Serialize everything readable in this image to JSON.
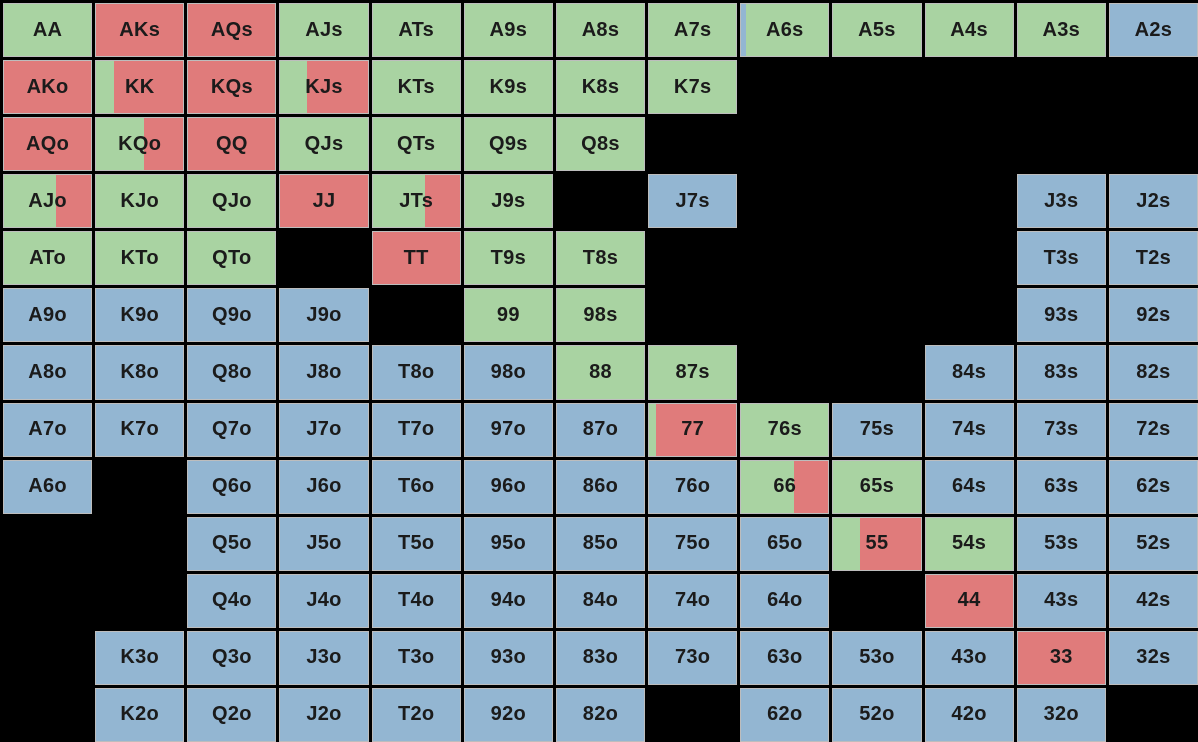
{
  "colors": {
    "raise": "#e07b7b",
    "call": "#a9d3a2",
    "fold": "#93b6d2",
    "empty": "#000000"
  },
  "ranks": [
    "A",
    "K",
    "Q",
    "J",
    "T",
    "9",
    "8",
    "7",
    "6",
    "5",
    "4",
    "3",
    "2"
  ],
  "grid": [
    [
      {
        "label": "AA",
        "mix": [
          [
            "call",
            1
          ]
        ]
      },
      {
        "label": "AKs",
        "mix": [
          [
            "raise",
            1
          ]
        ]
      },
      {
        "label": "AQs",
        "mix": [
          [
            "raise",
            1
          ]
        ]
      },
      {
        "label": "AJs",
        "mix": [
          [
            "call",
            1
          ]
        ]
      },
      {
        "label": "ATs",
        "mix": [
          [
            "call",
            1
          ]
        ]
      },
      {
        "label": "A9s",
        "mix": [
          [
            "call",
            1
          ]
        ]
      },
      {
        "label": "A8s",
        "mix": [
          [
            "call",
            1
          ]
        ]
      },
      {
        "label": "A7s",
        "mix": [
          [
            "call",
            1
          ]
        ]
      },
      {
        "label": "A6s",
        "mix": [
          [
            "fold",
            0.06
          ],
          [
            "call",
            0.94
          ]
        ]
      },
      {
        "label": "A5s",
        "mix": [
          [
            "call",
            1
          ]
        ]
      },
      {
        "label": "A4s",
        "mix": [
          [
            "call",
            1
          ]
        ]
      },
      {
        "label": "A3s",
        "mix": [
          [
            "call",
            1
          ]
        ]
      },
      {
        "label": "A2s",
        "mix": [
          [
            "fold",
            1
          ]
        ]
      }
    ],
    [
      {
        "label": "AKo",
        "mix": [
          [
            "raise",
            1
          ]
        ]
      },
      {
        "label": "KK",
        "mix": [
          [
            "call",
            0.2
          ],
          [
            "raise",
            0.8
          ]
        ]
      },
      {
        "label": "KQs",
        "mix": [
          [
            "raise",
            1
          ]
        ]
      },
      {
        "label": "KJs",
        "mix": [
          [
            "call",
            0.3
          ],
          [
            "raise",
            0.7
          ]
        ]
      },
      {
        "label": "KTs",
        "mix": [
          [
            "call",
            1
          ]
        ]
      },
      {
        "label": "K9s",
        "mix": [
          [
            "call",
            1
          ]
        ]
      },
      {
        "label": "K8s",
        "mix": [
          [
            "call",
            1
          ]
        ]
      },
      {
        "label": "K7s",
        "mix": [
          [
            "call",
            1
          ]
        ]
      },
      null,
      null,
      null,
      null,
      null
    ],
    [
      {
        "label": "AQo",
        "mix": [
          [
            "raise",
            1
          ]
        ]
      },
      {
        "label": "KQo",
        "mix": [
          [
            "call",
            0.55
          ],
          [
            "raise",
            0.45
          ]
        ]
      },
      {
        "label": "QQ",
        "mix": [
          [
            "raise",
            1
          ]
        ]
      },
      {
        "label": "QJs",
        "mix": [
          [
            "call",
            1
          ]
        ]
      },
      {
        "label": "QTs",
        "mix": [
          [
            "call",
            1
          ]
        ]
      },
      {
        "label": "Q9s",
        "mix": [
          [
            "call",
            1
          ]
        ]
      },
      {
        "label": "Q8s",
        "mix": [
          [
            "call",
            1
          ]
        ]
      },
      null,
      null,
      null,
      null,
      null,
      null
    ],
    [
      {
        "label": "AJo",
        "mix": [
          [
            "call",
            0.6
          ],
          [
            "raise",
            0.4
          ]
        ]
      },
      {
        "label": "KJo",
        "mix": [
          [
            "call",
            1
          ]
        ]
      },
      {
        "label": "QJo",
        "mix": [
          [
            "call",
            1
          ]
        ]
      },
      {
        "label": "JJ",
        "mix": [
          [
            "raise",
            1
          ]
        ]
      },
      {
        "label": "JTs",
        "mix": [
          [
            "call",
            0.6
          ],
          [
            "raise",
            0.4
          ]
        ]
      },
      {
        "label": "J9s",
        "mix": [
          [
            "call",
            1
          ]
        ]
      },
      null,
      {
        "label": "J7s",
        "mix": [
          [
            "fold",
            1
          ]
        ]
      },
      null,
      null,
      null,
      {
        "label": "J3s",
        "mix": [
          [
            "fold",
            1
          ]
        ]
      },
      {
        "label": "J2s",
        "mix": [
          [
            "fold",
            1
          ]
        ]
      }
    ],
    [
      {
        "label": "ATo",
        "mix": [
          [
            "call",
            1
          ]
        ]
      },
      {
        "label": "KTo",
        "mix": [
          [
            "call",
            1
          ]
        ]
      },
      {
        "label": "QTo",
        "mix": [
          [
            "call",
            1
          ]
        ]
      },
      null,
      {
        "label": "TT",
        "mix": [
          [
            "raise",
            1
          ]
        ]
      },
      {
        "label": "T9s",
        "mix": [
          [
            "call",
            1
          ]
        ]
      },
      {
        "label": "T8s",
        "mix": [
          [
            "call",
            1
          ]
        ]
      },
      null,
      null,
      null,
      null,
      {
        "label": "T3s",
        "mix": [
          [
            "fold",
            1
          ]
        ]
      },
      {
        "label": "T2s",
        "mix": [
          [
            "fold",
            1
          ]
        ]
      }
    ],
    [
      {
        "label": "A9o",
        "mix": [
          [
            "fold",
            1
          ]
        ]
      },
      {
        "label": "K9o",
        "mix": [
          [
            "fold",
            1
          ]
        ]
      },
      {
        "label": "Q9o",
        "mix": [
          [
            "fold",
            1
          ]
        ]
      },
      {
        "label": "J9o",
        "mix": [
          [
            "fold",
            1
          ]
        ]
      },
      null,
      {
        "label": "99",
        "mix": [
          [
            "call",
            1
          ]
        ]
      },
      {
        "label": "98s",
        "mix": [
          [
            "call",
            1
          ]
        ]
      },
      null,
      null,
      null,
      null,
      {
        "label": "93s",
        "mix": [
          [
            "fold",
            1
          ]
        ]
      },
      {
        "label": "92s",
        "mix": [
          [
            "fold",
            1
          ]
        ]
      }
    ],
    [
      {
        "label": "A8o",
        "mix": [
          [
            "fold",
            1
          ]
        ]
      },
      {
        "label": "K8o",
        "mix": [
          [
            "fold",
            1
          ]
        ]
      },
      {
        "label": "Q8o",
        "mix": [
          [
            "fold",
            1
          ]
        ]
      },
      {
        "label": "J8o",
        "mix": [
          [
            "fold",
            1
          ]
        ]
      },
      {
        "label": "T8o",
        "mix": [
          [
            "fold",
            1
          ]
        ]
      },
      {
        "label": "98o",
        "mix": [
          [
            "fold",
            1
          ]
        ]
      },
      {
        "label": "88",
        "mix": [
          [
            "call",
            1
          ]
        ]
      },
      {
        "label": "87s",
        "mix": [
          [
            "call",
            1
          ]
        ]
      },
      null,
      null,
      {
        "label": "84s",
        "mix": [
          [
            "fold",
            1
          ]
        ]
      },
      {
        "label": "83s",
        "mix": [
          [
            "fold",
            1
          ]
        ]
      },
      {
        "label": "82s",
        "mix": [
          [
            "fold",
            1
          ]
        ]
      }
    ],
    [
      {
        "label": "A7o",
        "mix": [
          [
            "fold",
            1
          ]
        ]
      },
      {
        "label": "K7o",
        "mix": [
          [
            "fold",
            1
          ]
        ]
      },
      {
        "label": "Q7o",
        "mix": [
          [
            "fold",
            1
          ]
        ]
      },
      {
        "label": "J7o",
        "mix": [
          [
            "fold",
            1
          ]
        ]
      },
      {
        "label": "T7o",
        "mix": [
          [
            "fold",
            1
          ]
        ]
      },
      {
        "label": "97o",
        "mix": [
          [
            "fold",
            1
          ]
        ]
      },
      {
        "label": "87o",
        "mix": [
          [
            "fold",
            1
          ]
        ]
      },
      {
        "label": "77",
        "mix": [
          [
            "call",
            0.08
          ],
          [
            "raise",
            0.92
          ]
        ]
      },
      {
        "label": "76s",
        "mix": [
          [
            "call",
            1
          ]
        ]
      },
      {
        "label": "75s",
        "mix": [
          [
            "fold",
            1
          ]
        ]
      },
      {
        "label": "74s",
        "mix": [
          [
            "fold",
            1
          ]
        ]
      },
      {
        "label": "73s",
        "mix": [
          [
            "fold",
            1
          ]
        ]
      },
      {
        "label": "72s",
        "mix": [
          [
            "fold",
            1
          ]
        ]
      }
    ],
    [
      {
        "label": "A6o",
        "mix": [
          [
            "fold",
            1
          ]
        ]
      },
      null,
      {
        "label": "Q6o",
        "mix": [
          [
            "fold",
            1
          ]
        ]
      },
      {
        "label": "J6o",
        "mix": [
          [
            "fold",
            1
          ]
        ]
      },
      {
        "label": "T6o",
        "mix": [
          [
            "fold",
            1
          ]
        ]
      },
      {
        "label": "96o",
        "mix": [
          [
            "fold",
            1
          ]
        ]
      },
      {
        "label": "86o",
        "mix": [
          [
            "fold",
            1
          ]
        ]
      },
      {
        "label": "76o",
        "mix": [
          [
            "fold",
            1
          ]
        ]
      },
      {
        "label": "66",
        "mix": [
          [
            "call",
            0.6
          ],
          [
            "raise",
            0.4
          ]
        ]
      },
      {
        "label": "65s",
        "mix": [
          [
            "call",
            1
          ]
        ]
      },
      {
        "label": "64s",
        "mix": [
          [
            "fold",
            1
          ]
        ]
      },
      {
        "label": "63s",
        "mix": [
          [
            "fold",
            1
          ]
        ]
      },
      {
        "label": "62s",
        "mix": [
          [
            "fold",
            1
          ]
        ]
      }
    ],
    [
      null,
      null,
      {
        "label": "Q5o",
        "mix": [
          [
            "fold",
            1
          ]
        ]
      },
      {
        "label": "J5o",
        "mix": [
          [
            "fold",
            1
          ]
        ]
      },
      {
        "label": "T5o",
        "mix": [
          [
            "fold",
            1
          ]
        ]
      },
      {
        "label": "95o",
        "mix": [
          [
            "fold",
            1
          ]
        ]
      },
      {
        "label": "85o",
        "mix": [
          [
            "fold",
            1
          ]
        ]
      },
      {
        "label": "75o",
        "mix": [
          [
            "fold",
            1
          ]
        ]
      },
      {
        "label": "65o",
        "mix": [
          [
            "fold",
            1
          ]
        ]
      },
      {
        "label": "55",
        "mix": [
          [
            "call",
            0.3
          ],
          [
            "raise",
            0.7
          ]
        ]
      },
      {
        "label": "54s",
        "mix": [
          [
            "call",
            1
          ]
        ]
      },
      {
        "label": "53s",
        "mix": [
          [
            "fold",
            1
          ]
        ]
      },
      {
        "label": "52s",
        "mix": [
          [
            "fold",
            1
          ]
        ]
      }
    ],
    [
      null,
      null,
      {
        "label": "Q4o",
        "mix": [
          [
            "fold",
            1
          ]
        ]
      },
      {
        "label": "J4o",
        "mix": [
          [
            "fold",
            1
          ]
        ]
      },
      {
        "label": "T4o",
        "mix": [
          [
            "fold",
            1
          ]
        ]
      },
      {
        "label": "94o",
        "mix": [
          [
            "fold",
            1
          ]
        ]
      },
      {
        "label": "84o",
        "mix": [
          [
            "fold",
            1
          ]
        ]
      },
      {
        "label": "74o",
        "mix": [
          [
            "fold",
            1
          ]
        ]
      },
      {
        "label": "64o",
        "mix": [
          [
            "fold",
            1
          ]
        ]
      },
      null,
      {
        "label": "44",
        "mix": [
          [
            "raise",
            1
          ]
        ]
      },
      {
        "label": "43s",
        "mix": [
          [
            "fold",
            1
          ]
        ]
      },
      {
        "label": "42s",
        "mix": [
          [
            "fold",
            1
          ]
        ]
      }
    ],
    [
      null,
      {
        "label": "K3o",
        "mix": [
          [
            "fold",
            1
          ]
        ]
      },
      {
        "label": "Q3o",
        "mix": [
          [
            "fold",
            1
          ]
        ]
      },
      {
        "label": "J3o",
        "mix": [
          [
            "fold",
            1
          ]
        ]
      },
      {
        "label": "T3o",
        "mix": [
          [
            "fold",
            1
          ]
        ]
      },
      {
        "label": "93o",
        "mix": [
          [
            "fold",
            1
          ]
        ]
      },
      {
        "label": "83o",
        "mix": [
          [
            "fold",
            1
          ]
        ]
      },
      {
        "label": "73o",
        "mix": [
          [
            "fold",
            1
          ]
        ]
      },
      {
        "label": "63o",
        "mix": [
          [
            "fold",
            1
          ]
        ]
      },
      {
        "label": "53o",
        "mix": [
          [
            "fold",
            1
          ]
        ]
      },
      {
        "label": "43o",
        "mix": [
          [
            "fold",
            1
          ]
        ]
      },
      {
        "label": "33",
        "mix": [
          [
            "raise",
            1
          ]
        ]
      },
      {
        "label": "32s",
        "mix": [
          [
            "fold",
            1
          ]
        ]
      }
    ],
    [
      null,
      {
        "label": "K2o",
        "mix": [
          [
            "fold",
            1
          ]
        ]
      },
      {
        "label": "Q2o",
        "mix": [
          [
            "fold",
            1
          ]
        ]
      },
      {
        "label": "J2o",
        "mix": [
          [
            "fold",
            1
          ]
        ]
      },
      {
        "label": "T2o",
        "mix": [
          [
            "fold",
            1
          ]
        ]
      },
      {
        "label": "92o",
        "mix": [
          [
            "fold",
            1
          ]
        ]
      },
      {
        "label": "82o",
        "mix": [
          [
            "fold",
            1
          ]
        ]
      },
      null,
      {
        "label": "62o",
        "mix": [
          [
            "fold",
            1
          ]
        ]
      },
      {
        "label": "52o",
        "mix": [
          [
            "fold",
            1
          ]
        ]
      },
      {
        "label": "42o",
        "mix": [
          [
            "fold",
            1
          ]
        ]
      },
      {
        "label": "32o",
        "mix": [
          [
            "fold",
            1
          ]
        ]
      },
      null
    ]
  ]
}
